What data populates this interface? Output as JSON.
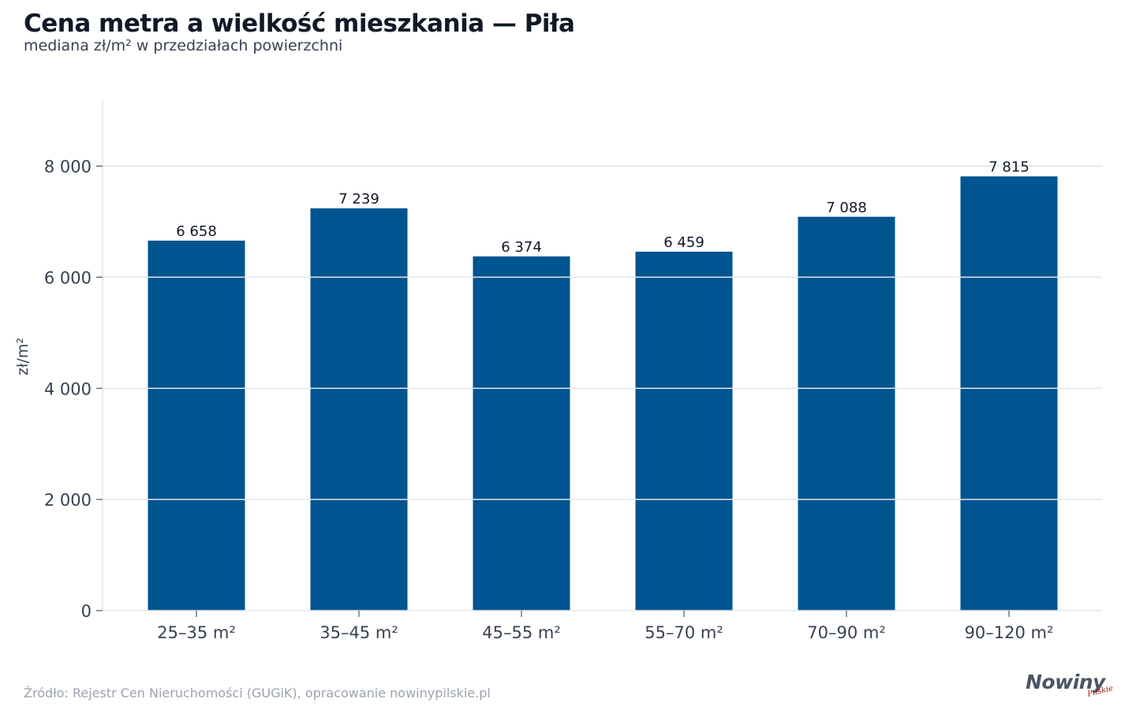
{
  "chart_data": {
    "type": "bar",
    "title": "Cena metra a wielkość mieszkania — Piła",
    "subtitle": "mediana zł/m² w przedziałach powierzchni",
    "ylabel": "zł/m²",
    "xlabel": "",
    "categories": [
      "25–35 m²",
      "35–45 m²",
      "45–55 m²",
      "55–70 m²",
      "70–90 m²",
      "90–120 m²"
    ],
    "values": [
      6658,
      7239,
      6374,
      6459,
      7088,
      7815
    ],
    "value_labels": [
      "6 658",
      "7 239",
      "6 374",
      "6 459",
      "7 088",
      "7 815"
    ],
    "ylim": [
      0,
      9200
    ],
    "yticks": [
      0,
      2000,
      4000,
      6000,
      8000
    ],
    "ytick_labels": [
      "0",
      "2 000",
      "4 000",
      "6 000",
      "8 000"
    ],
    "grid": true,
    "bar_color": "#005490",
    "grid_color": "#e5e7eb"
  },
  "footer": {
    "source": "Źródło: Rejestr Cen Nieruchomości (GUGiK), opracowanie nowinypilskie.pl"
  },
  "logo": {
    "name": "Nowiny",
    "sub": "Pilskie"
  }
}
